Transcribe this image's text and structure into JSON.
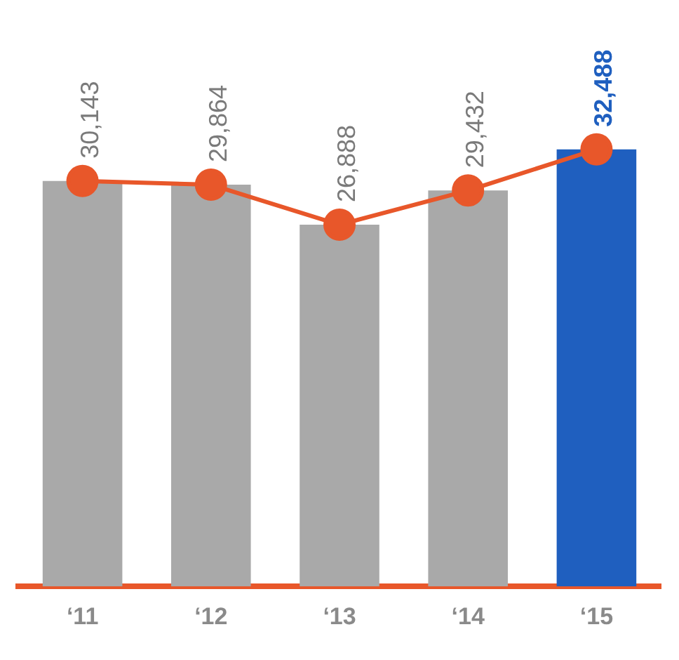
{
  "chart_data": {
    "type": "bar",
    "categories": [
      "‘11",
      "‘12",
      "‘13",
      "‘14",
      "‘15"
    ],
    "series": [
      {
        "colors": [
          "#a9a9a9",
          "#a9a9a9",
          "#a9a9a9",
          "#a9a9a9",
          "#1f5fbf"
        ],
        "values": [
          30143,
          29864,
          26888,
          29432,
          32488
        ]
      },
      {
        "type": "line",
        "color": "#e8572a",
        "values": [
          30143,
          29864,
          26888,
          29432,
          32488
        ],
        "value_labels": [
          "30,143",
          "29,864",
          "26,888",
          "29,432",
          "32,488"
        ]
      }
    ],
    "marker": "circle",
    "legend": false,
    "grid": false,
    "tick_labels": "x"
  }
}
